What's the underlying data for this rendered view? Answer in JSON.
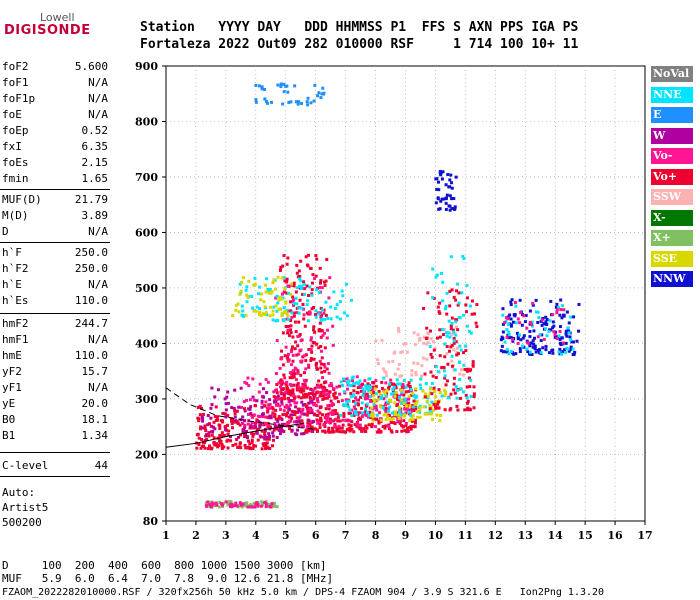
{
  "logo": {
    "line1": "Lowell",
    "line2": "DIGISONDE"
  },
  "header": {
    "row1": "Station   YYYY DAY   DDD HHMMSS P1  FFS S AXN PPS IGA PS",
    "row2": "Fortaleza 2022 Out09 282 010000 RSF     1 714 100 10+ 11"
  },
  "params": [
    {
      "name": "foF2",
      "value": "5.600"
    },
    {
      "name": "foF1",
      "value": "N/A"
    },
    {
      "name": "foF1p",
      "value": "N/A"
    },
    {
      "name": "foE",
      "value": "N/A"
    },
    {
      "name": "foEp",
      "value": "0.52"
    },
    {
      "name": "fxI",
      "value": "6.35"
    },
    {
      "name": "foEs",
      "value": "2.15"
    },
    {
      "name": "fmin",
      "value": "1.65"
    },
    {
      "name": "MUF(D)",
      "value": "21.79"
    },
    {
      "name": "M(D)",
      "value": "3.89"
    },
    {
      "name": "D",
      "value": "N/A"
    },
    {
      "name": "h`F",
      "value": "250.0"
    },
    {
      "name": "h`F2",
      "value": "250.0"
    },
    {
      "name": "h`E",
      "value": "N/A"
    },
    {
      "name": "h`Es",
      "value": "110.0"
    },
    {
      "name": "hmF2",
      "value": "244.7"
    },
    {
      "name": "hmF1",
      "value": "N/A"
    },
    {
      "name": "hmE",
      "value": "110.0"
    },
    {
      "name": "yF2",
      "value": "15.7"
    },
    {
      "name": "yF1",
      "value": "N/A"
    },
    {
      "name": "yE",
      "value": "20.0"
    },
    {
      "name": "B0",
      "value": "18.1"
    },
    {
      "name": "B1",
      "value": "1.34"
    },
    {
      "name": "C-level",
      "value": "44"
    }
  ],
  "auto": {
    "line1": "Auto:",
    "line2": "Artist5",
    "line3": "500200"
  },
  "bottom": {
    "d_row": "D     100  200  400  600  800 1000 1500 3000 [km]",
    "muf_row": "MUF   5.9  6.0  6.4  7.0  7.8  9.0 12.6 21.8 [MHz]",
    "footer": "FZAOM_2022282010000.RSF / 320fx256h 50 kHz 5.0 km / DPS-4 FZAOM 904 / 3.9 S 321.6 E   Ion2Png 1.3.20"
  },
  "legend": [
    {
      "label": "NoVal",
      "color": "#808080"
    },
    {
      "label": "NNE",
      "color": "#00e5ff"
    },
    {
      "label": "E",
      "color": "#1e90ff"
    },
    {
      "label": "W",
      "color": "#b000a0"
    },
    {
      "label": "Vo-",
      "color": "#ff1493"
    },
    {
      "label": "Vo+",
      "color": "#ee0030"
    },
    {
      "label": "SSW",
      "color": "#ffb0b0"
    },
    {
      "label": "X-",
      "color": "#007800"
    },
    {
      "label": "X+",
      "color": "#80c060"
    },
    {
      "label": "SSE",
      "color": "#d8d800"
    },
    {
      "label": "NNW",
      "color": "#1010d0"
    }
  ],
  "chart_data": {
    "type": "scatter",
    "title": "",
    "xlabel": "",
    "ylabel": "",
    "xlim": [
      1,
      17
    ],
    "ylim": [
      80,
      900
    ],
    "xticks": [
      1,
      2,
      3,
      4,
      5,
      6,
      7,
      8,
      9,
      10,
      11,
      12,
      13,
      14,
      15,
      16,
      17
    ],
    "yticks": [
      80,
      200,
      300,
      400,
      500,
      600,
      700,
      800,
      900
    ],
    "grid": "dotted",
    "legend_position": "right",
    "clusters": [
      {
        "class": "Vo+",
        "x": [
          2.0,
          4.6
        ],
        "y": [
          210,
          290
        ],
        "n": 200
      },
      {
        "class": "Vo+",
        "x": [
          4.6,
          9.4
        ],
        "y": [
          240,
          330
        ],
        "n": 420
      },
      {
        "class": "Vo-",
        "x": [
          3.5,
          9.2
        ],
        "y": [
          250,
          340
        ],
        "n": 200
      },
      {
        "class": "W",
        "x": [
          2.2,
          6.0
        ],
        "y": [
          230,
          320
        ],
        "n": 120
      },
      {
        "class": "Vo+",
        "x": [
          4.8,
          6.4
        ],
        "y": [
          300,
          560
        ],
        "n": 200
      },
      {
        "class": "Vo-",
        "x": [
          4.6,
          6.6
        ],
        "y": [
          280,
          520
        ],
        "n": 100
      },
      {
        "class": "NNE",
        "x": [
          3.3,
          7.2
        ],
        "y": [
          440,
          520
        ],
        "n": 90
      },
      {
        "class": "SSE",
        "x": [
          3.2,
          5.2
        ],
        "y": [
          450,
          520
        ],
        "n": 60
      },
      {
        "class": "NNE",
        "x": [
          6.8,
          9.9
        ],
        "y": [
          270,
          340
        ],
        "n": 120
      },
      {
        "class": "SSE",
        "x": [
          7.8,
          10.4
        ],
        "y": [
          260,
          320
        ],
        "n": 90
      },
      {
        "class": "SSW",
        "x": [
          8.0,
          11.0
        ],
        "y": [
          340,
          430
        ],
        "n": 70
      },
      {
        "class": "Vo+",
        "x": [
          9.6,
          11.4
        ],
        "y": [
          280,
          500
        ],
        "n": 120
      },
      {
        "class": "NNE",
        "x": [
          9.8,
          11.2
        ],
        "y": [
          300,
          560
        ],
        "n": 60
      },
      {
        "class": "NNW",
        "x": [
          10.0,
          10.7
        ],
        "y": [
          640,
          710
        ],
        "n": 45
      },
      {
        "class": "NNW",
        "x": [
          12.2,
          14.8
        ],
        "y": [
          380,
          480
        ],
        "n": 150
      },
      {
        "class": "NNE",
        "x": [
          12.2,
          14.6
        ],
        "y": [
          380,
          470
        ],
        "n": 40
      },
      {
        "class": "Vo-",
        "x": [
          12.3,
          14.4
        ],
        "y": [
          400,
          480
        ],
        "n": 30
      },
      {
        "class": "E",
        "x": [
          4.0,
          6.3
        ],
        "y": [
          830,
          870
        ],
        "n": 40
      },
      {
        "class": "X+",
        "x": [
          2.3,
          4.8
        ],
        "y": [
          105,
          115
        ],
        "n": 60
      },
      {
        "class": "Vo-",
        "x": [
          2.3,
          4.6
        ],
        "y": [
          105,
          115
        ],
        "n": 40
      }
    ],
    "lines": [
      {
        "style": "dashed",
        "x": [
          1.0,
          1.8,
          2.7,
          3.8,
          5.2,
          6.0
        ],
        "y": [
          320,
          290,
          270,
          260,
          250,
          245
        ]
      },
      {
        "style": "solid",
        "x": [
          1.0,
          2.0,
          3.0,
          4.0,
          5.0,
          5.6
        ],
        "y": [
          213,
          220,
          232,
          242,
          251,
          256
        ]
      }
    ]
  }
}
